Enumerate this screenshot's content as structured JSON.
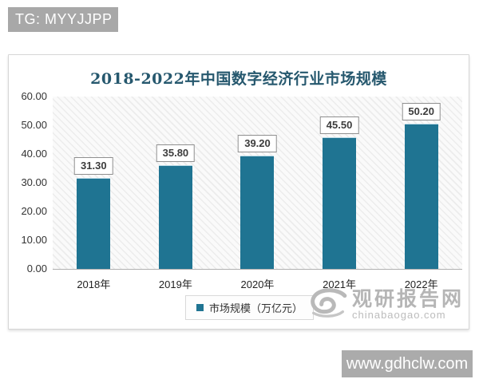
{
  "overlays": {
    "tg_banner": "TG: MYYJJPP",
    "site_banner": "www.gdhclw.com"
  },
  "watermark": {
    "name": "观研报告网",
    "domain": "chinabaogao.com"
  },
  "chart_data": {
    "type": "bar",
    "title": "2018-2022年中国数字经济行业市场规模",
    "categories": [
      "2018年",
      "2019年",
      "2020年",
      "2021年",
      "2022年"
    ],
    "values": [
      31.3,
      35.8,
      39.2,
      45.5,
      50.2
    ],
    "value_labels": [
      "31.30",
      "35.80",
      "39.20",
      "45.50",
      "50.20"
    ],
    "legend": "市场规模（万亿元）",
    "xlabel": "",
    "ylabel": "",
    "ylim": [
      0,
      60
    ],
    "y_ticks": [
      "60.00",
      "50.00",
      "40.00",
      "30.00",
      "20.00",
      "10.00",
      "0.00"
    ],
    "grid": false,
    "legend_position": "bottom",
    "bar_color": "#1f7492",
    "title_color": "#26586e"
  }
}
